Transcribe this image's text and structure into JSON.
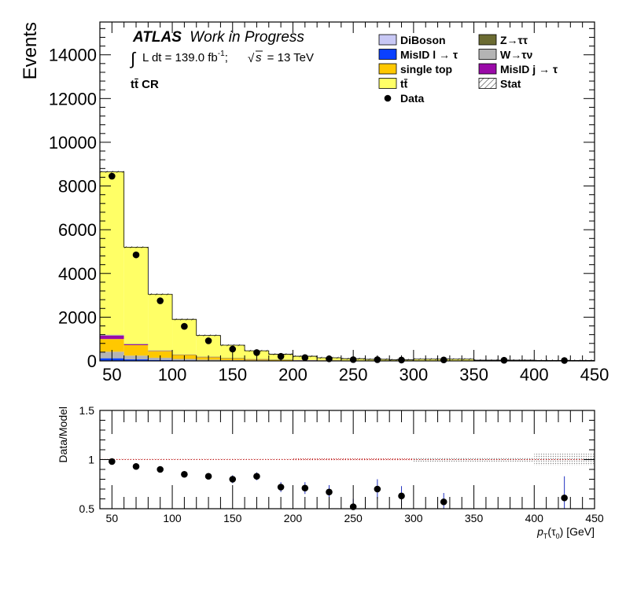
{
  "chart_data": [
    {
      "type": "stacked-histogram",
      "panel": "main",
      "ylabel": "Events",
      "xlim": [
        40,
        450
      ],
      "ylim": [
        0,
        15500
      ],
      "y_ticks": [
        0,
        2000,
        4000,
        6000,
        8000,
        10000,
        12000,
        14000
      ],
      "x_ticks": [
        50,
        100,
        150,
        200,
        250,
        300,
        350,
        400,
        450
      ],
      "atlas_label": "ATLAS",
      "atlas_suffix": "Work in Progress",
      "lumi_label": "L dt = 139.0 fb",
      "lumi_exp": "-1",
      "lumi_sep": ";",
      "sqrts_s": "s",
      "energy_label": "= 13 TeV",
      "integral_symbol": "∫",
      "sqrt_symbol": "√",
      "region_label": "tt̄ CR",
      "legend": [
        {
          "name": "DiBoson",
          "color": "#c8c8f5",
          "kind": "box"
        },
        {
          "name": "Z→ττ",
          "color": "#6b6b32",
          "kind": "box"
        },
        {
          "name": "MisID l → τ",
          "color": "#0a40ff",
          "kind": "box"
        },
        {
          "name": "W→τν",
          "color": "#b4b4b4",
          "kind": "box"
        },
        {
          "name": "single top",
          "color": "#ffc800",
          "kind": "box"
        },
        {
          "name": "MisID j → τ",
          "color": "#9a0aa8",
          "kind": "box"
        },
        {
          "name": "tt̄",
          "color": "#ffff66",
          "kind": "box"
        },
        {
          "name": "Stat",
          "color": "#000000",
          "kind": "hatch"
        },
        {
          "name": "Data",
          "color": "#000000",
          "kind": "marker"
        }
      ],
      "bin_edges": [
        40,
        60,
        80,
        100,
        120,
        140,
        160,
        180,
        200,
        220,
        240,
        260,
        280,
        300,
        350,
        400,
        450
      ],
      "series": [
        {
          "name": "MisID l → τ",
          "color": "#0a40ff",
          "values": [
            120,
            70,
            45,
            30,
            20,
            14,
            10,
            7,
            5,
            3,
            2,
            2,
            1,
            1,
            1,
            1
          ]
        },
        {
          "name": "W→τν",
          "color": "#b4b4b4",
          "values": [
            300,
            170,
            100,
            60,
            38,
            25,
            16,
            11,
            8,
            5,
            4,
            3,
            2,
            2,
            1,
            1
          ]
        },
        {
          "name": "single top",
          "color": "#ffc800",
          "values": [
            580,
            480,
            300,
            185,
            120,
            80,
            50,
            34,
            24,
            16,
            11,
            8,
            6,
            8,
            4,
            3
          ]
        },
        {
          "name": "MisID j → τ",
          "color": "#9a0aa8",
          "values": [
            160,
            40,
            20,
            12,
            8,
            5,
            4,
            3,
            2,
            1,
            1,
            1,
            1,
            1,
            0,
            0
          ]
        },
        {
          "name": "DiBoson",
          "color": "#c8c8f5",
          "values": [
            20,
            12,
            8,
            5,
            3,
            2,
            2,
            1,
            1,
            1,
            1,
            0,
            0,
            0,
            0,
            0
          ]
        },
        {
          "name": "Z→ττ",
          "color": "#6b6b32",
          "values": [
            15,
            8,
            5,
            3,
            2,
            1,
            1,
            1,
            0,
            0,
            0,
            0,
            0,
            0,
            0,
            0
          ]
        },
        {
          "name": "tt̄",
          "color": "#ffff66",
          "values": [
            7455,
            4420,
            2570,
            1605,
            974,
            593,
            380,
            246,
            174,
            118,
            82,
            60,
            44,
            70,
            28,
            17
          ]
        }
      ],
      "data_points": [
        {
          "x": 50,
          "y": 8450
        },
        {
          "x": 70,
          "y": 4850
        },
        {
          "x": 90,
          "y": 2750
        },
        {
          "x": 110,
          "y": 1580
        },
        {
          "x": 130,
          "y": 920
        },
        {
          "x": 150,
          "y": 540
        },
        {
          "x": 170,
          "y": 380
        },
        {
          "x": 190,
          "y": 210
        },
        {
          "x": 210,
          "y": 150
        },
        {
          "x": 230,
          "y": 95
        },
        {
          "x": 250,
          "y": 58
        },
        {
          "x": 270,
          "y": 55
        },
        {
          "x": 290,
          "y": 40
        },
        {
          "x": 325,
          "y": 45
        },
        {
          "x": 375,
          "y": 30
        },
        {
          "x": 425,
          "y": 18
        }
      ]
    },
    {
      "type": "scatter",
      "panel": "ratio",
      "ylabel": "Data/Model",
      "xlabel_main": "p",
      "xlabel_sub": "T",
      "xlabel_arg": "(τ",
      "xlabel_arg_sub": "0",
      "xlabel_unit": ") [GeV]",
      "xlim": [
        40,
        450
      ],
      "ylim": [
        0.5,
        1.5
      ],
      "y_ticks": [
        0.5,
        1,
        1.5
      ],
      "y_tick_labels": [
        "0.5",
        "1",
        "1.5"
      ],
      "x_ticks": [
        50,
        100,
        150,
        200,
        250,
        300,
        350,
        400,
        450
      ],
      "reference_line": 1,
      "stat_band": [
        {
          "x0": 40,
          "x1": 200,
          "half_width": 0.006
        },
        {
          "x0": 200,
          "x1": 300,
          "half_width": 0.012
        },
        {
          "x0": 300,
          "x1": 400,
          "half_width": 0.025
        },
        {
          "x0": 400,
          "x1": 450,
          "half_width": 0.06
        }
      ],
      "points": [
        {
          "x": 50,
          "y": 0.98,
          "err": 0.01
        },
        {
          "x": 70,
          "y": 0.93,
          "err": 0.015
        },
        {
          "x": 90,
          "y": 0.9,
          "err": 0.02
        },
        {
          "x": 110,
          "y": 0.85,
          "err": 0.02
        },
        {
          "x": 130,
          "y": 0.83,
          "err": 0.03
        },
        {
          "x": 150,
          "y": 0.8,
          "err": 0.04
        },
        {
          "x": 170,
          "y": 0.83,
          "err": 0.04
        },
        {
          "x": 190,
          "y": 0.72,
          "err": 0.05
        },
        {
          "x": 210,
          "y": 0.71,
          "err": 0.06
        },
        {
          "x": 230,
          "y": 0.67,
          "err": 0.07
        },
        {
          "x": 250,
          "y": 0.52,
          "err": 0.08
        },
        {
          "x": 270,
          "y": 0.7,
          "err": 0.1
        },
        {
          "x": 290,
          "y": 0.63,
          "err": 0.1
        },
        {
          "x": 325,
          "y": 0.57,
          "err": 0.09
        },
        {
          "x": 425,
          "y": 0.61,
          "err": 0.22
        }
      ]
    }
  ]
}
